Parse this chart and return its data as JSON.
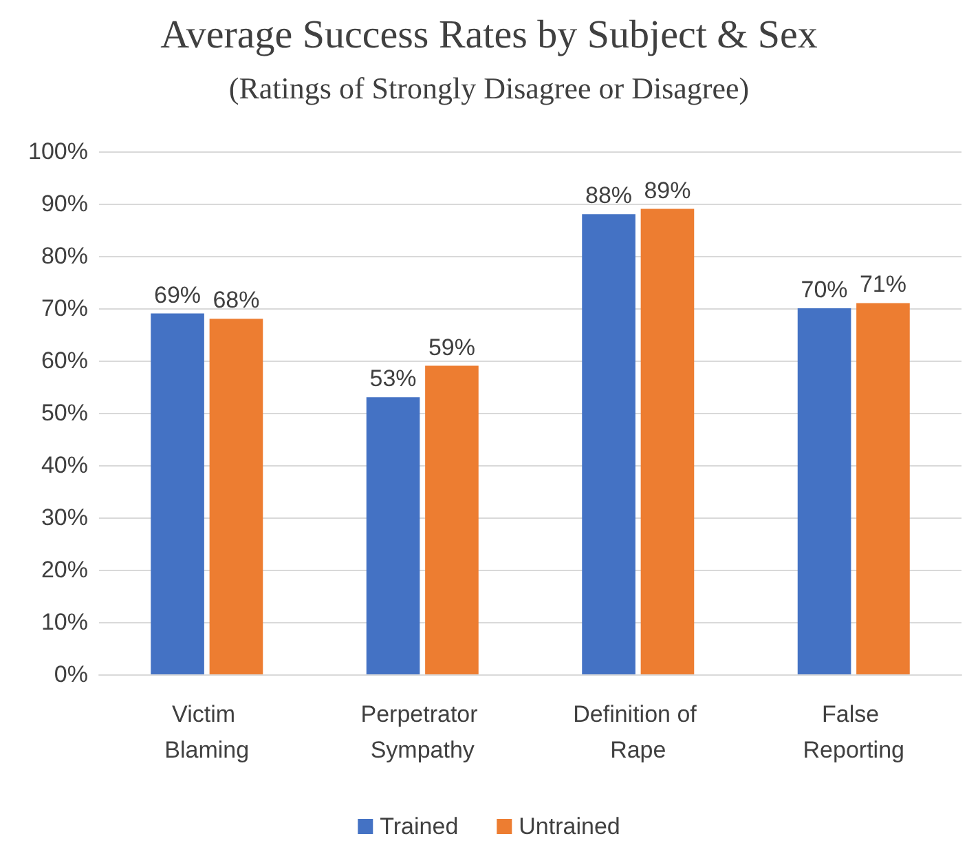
{
  "chart_data": {
    "type": "bar",
    "title": "Average Success Rates by Subject & Sex",
    "subtitle": "(Ratings of Strongly Disagree or Disagree)",
    "categories": [
      "Victim Blaming",
      "Perpetrator Sympathy",
      "Definition of Rape",
      "False Reporting"
    ],
    "series": [
      {
        "name": "Trained",
        "color": "#4472c4",
        "values": [
          69,
          53,
          88,
          70
        ],
        "value_labels": [
          "69%",
          "53%",
          "88%",
          "70%"
        ]
      },
      {
        "name": "Untrained",
        "color": "#ed7d31",
        "values": [
          68,
          59,
          89,
          71
        ],
        "value_labels": [
          "68%",
          "59%",
          "89%",
          "71%"
        ]
      }
    ],
    "ylim": [
      0,
      100
    ],
    "yticks": [
      {
        "value": 0,
        "label": "0%"
      },
      {
        "value": 10,
        "label": "10%"
      },
      {
        "value": 20,
        "label": "20%"
      },
      {
        "value": 30,
        "label": "30%"
      },
      {
        "value": 40,
        "label": "40%"
      },
      {
        "value": 50,
        "label": "50%"
      },
      {
        "value": 60,
        "label": "60%"
      },
      {
        "value": 70,
        "label": "70%"
      },
      {
        "value": 80,
        "label": "80%"
      },
      {
        "value": 90,
        "label": "90%"
      },
      {
        "value": 100,
        "label": "100%"
      }
    ],
    "grid": "y",
    "legend": "bottom"
  }
}
